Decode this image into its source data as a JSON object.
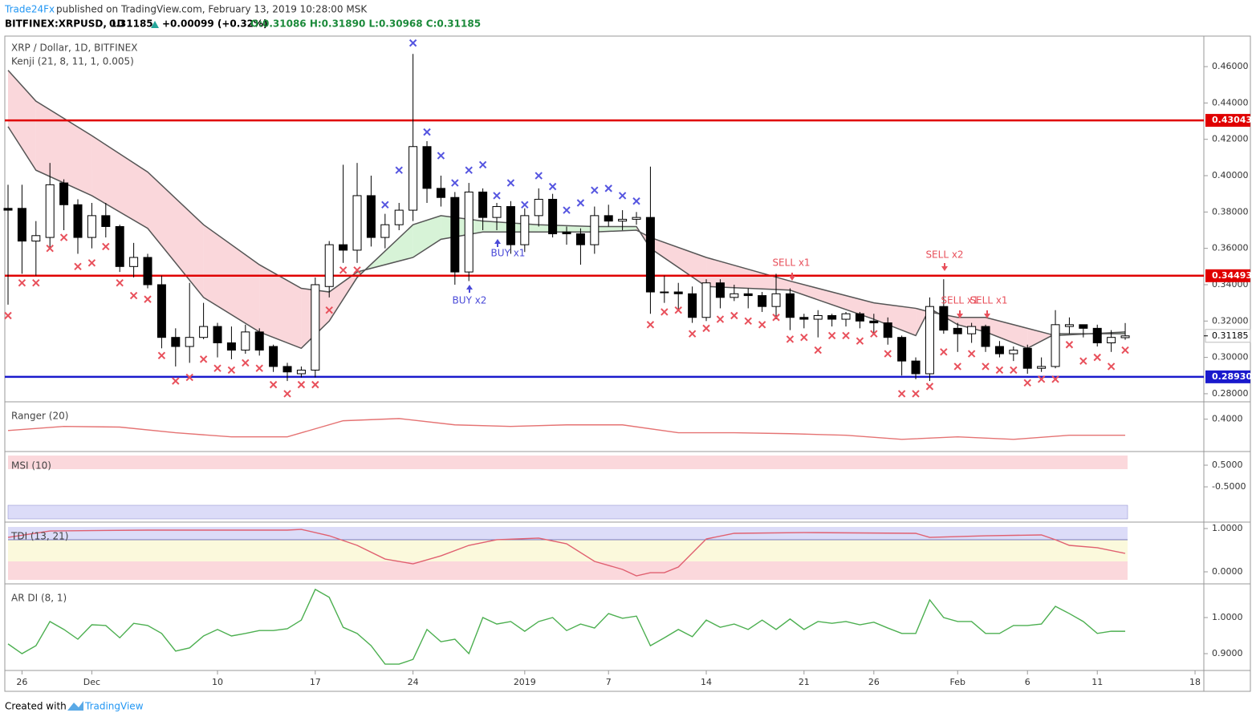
{
  "header": {
    "publisher": "Trade24Fx",
    "published": "published on TradingView.com, February 13, 2019 10:28:00 MSK",
    "symbol": "BITFINEX:XRPUSD, 1D",
    "last": "0.31185",
    "change": "+0.00099 (+0.32%)",
    "ohlc": "O:0.31086 H:0.31890 L:0.30968 C:0.31185"
  },
  "footer": {
    "created": "Created with",
    "brand": "TradingView"
  },
  "chart_data": [
    {
      "type": "candlestick",
      "title": "XRP / Dollar, 1D, BITFINEX",
      "subtitle": "Kenji (21, 8, 11, 1, 0.005)",
      "xlim": [
        -0.575,
        85.63
      ],
      "xticks": [
        {
          "value": 1,
          "label": "26"
        },
        {
          "value": 6,
          "label": "Dec"
        },
        {
          "value": 15,
          "label": "10"
        },
        {
          "value": 22,
          "label": "17"
        },
        {
          "value": 29,
          "label": "24"
        },
        {
          "value": 37,
          "label": "2019"
        },
        {
          "value": 43,
          "label": "7"
        },
        {
          "value": 50,
          "label": "14"
        },
        {
          "value": 57,
          "label": "21"
        },
        {
          "value": 62,
          "label": "26"
        },
        {
          "value": 68,
          "label": "Feb"
        },
        {
          "value": 73,
          "label": "6"
        },
        {
          "value": 78,
          "label": "11"
        },
        {
          "value": 85,
          "label": "18"
        }
      ],
      "ylim": [
        0.276,
        0.4768
      ],
      "yticks": [
        {
          "value": 0.28,
          "label": "0.28000"
        },
        {
          "value": 0.3,
          "label": "0.30000"
        },
        {
          "value": 0.32,
          "label": "0.32000"
        },
        {
          "value": 0.34,
          "label": "0.34000"
        },
        {
          "value": 0.36,
          "label": "0.36000"
        },
        {
          "value": 0.38,
          "label": "0.38000"
        },
        {
          "value": 0.4,
          "label": "0.40000"
        },
        {
          "value": 0.42,
          "label": "0.42000"
        },
        {
          "value": 0.44,
          "label": "0.44000"
        },
        {
          "value": 0.46,
          "label": "0.46000"
        }
      ],
      "open": [
        0.382,
        0.382,
        0.364,
        0.366,
        0.396,
        0.384,
        0.366,
        0.378,
        0.372,
        0.35,
        0.355,
        0.34,
        0.311,
        0.306,
        0.311,
        0.317,
        0.308,
        0.304,
        0.314,
        0.306,
        0.295,
        0.291,
        0.293,
        0.339,
        0.362,
        0.359,
        0.389,
        0.366,
        0.373,
        0.381,
        0.416,
        0.393,
        0.388,
        0.347,
        0.391,
        0.377,
        0.383,
        0.362,
        0.378,
        0.387,
        0.369,
        0.368,
        0.362,
        0.378,
        0.375,
        0.376,
        0.377,
        0.336,
        0.336,
        0.335,
        0.322,
        0.341,
        0.333,
        0.335,
        0.334,
        0.328,
        0.335,
        0.322,
        0.321,
        0.323,
        0.321,
        0.324,
        0.32,
        0.319,
        0.311,
        0.298,
        0.291,
        0.328,
        0.316,
        0.313,
        0.317,
        0.306,
        0.302,
        0.305,
        0.294,
        0.295,
        0.317,
        0.318,
        0.316,
        0.308,
        0.31086
      ],
      "high": [
        0.395,
        0.395,
        0.375,
        0.407,
        0.398,
        0.387,
        0.385,
        0.385,
        0.373,
        0.363,
        0.357,
        0.345,
        0.316,
        0.341,
        0.33,
        0.319,
        0.317,
        0.318,
        0.316,
        0.307,
        0.297,
        0.295,
        0.344,
        0.364,
        0.406,
        0.407,
        0.4,
        0.379,
        0.385,
        0.467,
        0.419,
        0.4,
        0.391,
        0.396,
        0.393,
        0.385,
        0.386,
        0.382,
        0.393,
        0.39,
        0.372,
        0.371,
        0.383,
        0.384,
        0.381,
        0.38,
        0.405,
        0.345,
        0.341,
        0.339,
        0.343,
        0.343,
        0.34,
        0.338,
        0.336,
        0.346,
        0.338,
        0.324,
        0.326,
        0.324,
        0.325,
        0.325,
        0.324,
        0.322,
        0.312,
        0.3,
        0.333,
        0.343,
        0.319,
        0.319,
        0.318,
        0.309,
        0.306,
        0.307,
        0.3,
        0.326,
        0.322,
        0.318,
        0.318,
        0.315,
        0.3189
      ],
      "low": [
        0.329,
        0.346,
        0.345,
        0.36,
        0.37,
        0.357,
        0.36,
        0.366,
        0.347,
        0.344,
        0.338,
        0.305,
        0.295,
        0.297,
        0.31,
        0.3,
        0.299,
        0.302,
        0.301,
        0.292,
        0.287,
        0.289,
        0.289,
        0.333,
        0.352,
        0.352,
        0.361,
        0.36,
        0.37,
        0.375,
        0.385,
        0.383,
        0.34,
        0.342,
        0.37,
        0.37,
        0.357,
        0.358,
        0.372,
        0.366,
        0.362,
        0.351,
        0.357,
        0.372,
        0.37,
        0.373,
        0.324,
        0.33,
        0.326,
        0.319,
        0.32,
        0.327,
        0.331,
        0.327,
        0.325,
        0.321,
        0.315,
        0.316,
        0.311,
        0.317,
        0.317,
        0.316,
        0.313,
        0.307,
        0.29,
        0.288,
        0.287,
        0.313,
        0.303,
        0.308,
        0.303,
        0.3,
        0.298,
        0.291,
        0.292,
        0.294,
        0.313,
        0.311,
        0.306,
        0.303,
        0.30968
      ],
      "close": [
        0.381,
        0.364,
        0.367,
        0.395,
        0.384,
        0.366,
        0.378,
        0.372,
        0.35,
        0.355,
        0.34,
        0.311,
        0.306,
        0.311,
        0.317,
        0.308,
        0.304,
        0.314,
        0.304,
        0.295,
        0.292,
        0.293,
        0.34,
        0.362,
        0.359,
        0.389,
        0.366,
        0.373,
        0.381,
        0.416,
        0.393,
        0.388,
        0.347,
        0.391,
        0.377,
        0.383,
        0.362,
        0.378,
        0.387,
        0.368,
        0.368,
        0.362,
        0.378,
        0.375,
        0.376,
        0.377,
        0.336,
        0.336,
        0.335,
        0.322,
        0.341,
        0.333,
        0.335,
        0.334,
        0.328,
        0.335,
        0.322,
        0.321,
        0.323,
        0.321,
        0.324,
        0.32,
        0.319,
        0.311,
        0.298,
        0.291,
        0.328,
        0.315,
        0.313,
        0.317,
        0.306,
        0.302,
        0.304,
        0.294,
        0.295,
        0.318,
        0.318,
        0.316,
        0.308,
        0.311,
        0.31185
      ],
      "kenji": {
        "x": [
          0,
          2,
          6,
          10,
          14,
          18,
          21,
          23,
          25,
          29,
          31,
          34,
          38,
          42,
          45,
          46,
          50,
          56,
          62,
          65,
          66,
          68,
          70,
          73,
          75,
          80
        ],
        "fast": [
          0.427,
          0.403,
          0.389,
          0.371,
          0.333,
          0.314,
          0.305,
          0.32,
          0.344,
          0.373,
          0.378,
          0.375,
          0.373,
          0.372,
          0.372,
          0.36,
          0.339,
          0.337,
          0.321,
          0.312,
          0.327,
          0.318,
          0.314,
          0.305,
          0.313,
          0.313
        ],
        "slow": [
          0.458,
          0.441,
          0.422,
          0.402,
          0.373,
          0.351,
          0.338,
          0.336,
          0.347,
          0.355,
          0.365,
          0.369,
          0.369,
          0.369,
          0.37,
          0.366,
          0.355,
          0.342,
          0.33,
          0.327,
          0.325,
          0.322,
          0.322,
          0.316,
          0.312,
          0.314
        ],
        "line_color": "#555555",
        "down_fill": "#f8c9cf",
        "up_fill": "#c9efc9"
      },
      "signals_down": [
        0.323,
        0.341,
        0.341,
        0.36,
        0.366,
        0.35,
        0.352,
        0.361,
        0.341,
        0.334,
        0.332,
        0.301,
        0.287,
        0.289,
        0.299,
        0.294,
        0.293,
        0.297,
        0.294,
        0.285,
        0.28,
        0.285,
        0.285,
        0.326,
        0.348,
        0.348,
        null,
        null,
        null,
        null,
        null,
        null,
        null,
        null,
        null,
        null,
        null,
        null,
        null,
        null,
        null,
        null,
        null,
        null,
        null,
        null,
        0.318,
        0.325,
        0.326,
        0.313,
        0.316,
        0.321,
        0.323,
        0.32,
        0.318,
        0.322,
        0.31,
        0.311,
        0.304,
        0.312,
        0.312,
        0.309,
        0.313,
        0.302,
        0.28,
        0.28,
        0.284,
        0.303,
        0.295,
        0.302,
        0.295,
        0.293,
        0.293,
        0.286,
        0.288,
        0.288,
        0.307,
        0.298,
        0.3,
        0.295,
        0.304
      ],
      "signals_up": [
        null,
        null,
        null,
        null,
        null,
        null,
        null,
        null,
        null,
        null,
        null,
        null,
        null,
        null,
        null,
        null,
        null,
        null,
        null,
        null,
        null,
        null,
        null,
        null,
        null,
        null,
        null,
        0.384,
        0.403,
        0.473,
        0.424,
        0.411,
        0.396,
        0.403,
        0.406,
        0.389,
        0.396,
        0.384,
        0.4,
        0.394,
        0.381,
        0.385,
        0.392,
        0.393,
        0.389,
        0.386,
        null,
        null,
        null,
        null,
        null,
        null,
        null,
        null,
        null,
        null,
        null,
        null,
        null,
        null,
        null,
        null,
        null,
        null,
        null,
        null,
        null,
        null,
        null,
        null,
        null,
        null,
        null,
        null,
        null,
        null,
        null,
        null,
        null,
        null,
        null
      ],
      "signal_down_color": "#e8505b",
      "signal_up_color": "#5555e0",
      "annotations": [
        "BUY x1",
        "BUY x2",
        "SELL x1",
        "SELL x2",
        "SELL x1",
        "SELL x1"
      ],
      "levels": [
        {
          "value": 0.43043,
          "label": "0.43043"
        },
        {
          "value": 0.34493,
          "label": "0.34493"
        },
        {
          "value": 0.2893,
          "label": "0.28930"
        }
      ],
      "level_colors": [
        "#e00000",
        "#e00000",
        "#1a1acc"
      ],
      "last_price": {
        "value": 0.31185,
        "label": "0.31185"
      }
    },
    {
      "type": "line",
      "title": "Ranger (20)",
      "ylim": [
        0.3,
        0.45
      ],
      "yticks": [
        {
          "value": 0.4,
          "label": "0.4000"
        }
      ],
      "series": [
        {
          "color": "#e57373",
          "x": [
            0,
            4,
            8,
            12,
            16,
            20,
            24,
            28,
            32,
            36,
            40,
            44,
            48,
            52,
            56,
            60,
            64,
            68,
            72,
            76,
            80
          ],
          "values": [
            0.364,
            0.377,
            0.375,
            0.357,
            0.344,
            0.344,
            0.395,
            0.402,
            0.382,
            0.377,
            0.382,
            0.382,
            0.357,
            0.357,
            0.354,
            0.349,
            0.336,
            0.344,
            0.336,
            0.349,
            0.349
          ]
        }
      ]
    },
    {
      "type": "bar",
      "title": "MSI (10)",
      "ylim": [
        -2.09,
        1.056
      ],
      "yticks": [
        {
          "value": 0.5,
          "label": "0.5000"
        },
        {
          "value": -0.5,
          "label": "-0.5000"
        }
      ]
    },
    {
      "type": "line",
      "title": "TDI (13, 21)",
      "ylim": [
        -0.259,
        1.111
      ],
      "yticks": [
        {
          "value": 1,
          "label": "1.0000"
        },
        {
          "value": 0,
          "label": "0.0000"
        }
      ],
      "series": [
        {
          "color": "#e06070",
          "x": [
            0,
            3,
            10,
            20,
            21,
            23,
            25,
            27,
            29,
            31,
            33,
            35,
            38,
            40,
            42,
            44,
            45,
            46,
            47,
            48,
            50,
            52,
            57,
            65,
            66,
            70,
            74,
            75,
            76,
            78,
            80
          ],
          "values": [
            0.796,
            0.944,
            0.963,
            0.963,
            0.981,
            0.833,
            0.611,
            0.296,
            0.185,
            0.37,
            0.611,
            0.741,
            0.778,
            0.648,
            0.241,
            0.056,
            -0.093,
            -0.019,
            -0.019,
            0.111,
            0.759,
            0.889,
            0.907,
            0.889,
            0.796,
            0.833,
            0.852,
            0.741,
            0.611,
            0.556,
            0.426
          ]
        }
      ]
    },
    {
      "type": "line",
      "title": "AR DI (8, 1)",
      "ylim": [
        0.8556,
        1.0889
      ],
      "yticks": [
        {
          "value": 1,
          "label": "1.0000"
        },
        {
          "value": 0.9,
          "label": "0.9000"
        }
      ],
      "series": [
        {
          "color": "#4caf50",
          "values": [
            0.927,
            0.9,
            0.922,
            0.989,
            0.967,
            0.94,
            0.98,
            0.978,
            0.944,
            0.984,
            0.978,
            0.956,
            0.907,
            0.916,
            0.949,
            0.967,
            0.949,
            0.956,
            0.964,
            0.964,
            0.969,
            0.993,
            1.078,
            1.056,
            0.973,
            0.956,
            0.922,
            0.871,
            0.871,
            0.884,
            0.967,
            0.933,
            0.94,
            0.9,
            1.0,
            0.982,
            0.989,
            0.962,
            0.989,
            1.0,
            0.964,
            0.982,
            0.971,
            1.011,
            0.998,
            1.004,
            0.922,
            0.944,
            0.967,
            0.947,
            0.993,
            0.973,
            0.982,
            0.967,
            0.993,
            0.967,
            0.996,
            0.967,
            0.989,
            0.984,
            0.989,
            0.98,
            0.987,
            0.971,
            0.956,
            0.956,
            1.049,
            1.0,
            0.989,
            0.989,
            0.956,
            0.956,
            0.978,
            0.978,
            0.982,
            1.031,
            1.011,
            0.989,
            0.956,
            0.962,
            0.962
          ]
        }
      ]
    }
  ]
}
